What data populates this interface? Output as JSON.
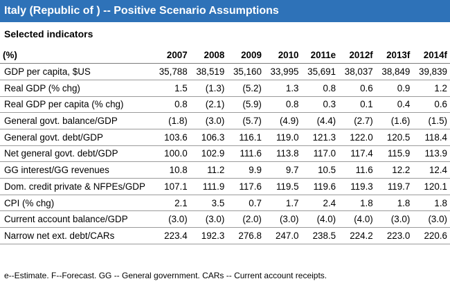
{
  "header": {
    "title": "Italy (Republic of ) -- Positive Scenario Assumptions",
    "subtitle": "Selected indicators"
  },
  "table": {
    "columns": [
      "(%)",
      "2007",
      "2008",
      "2009",
      "2010",
      "2011e",
      "2012f",
      "2013f",
      "2014f"
    ],
    "rows": [
      {
        "label": "GDP per capita, $US",
        "values": [
          "35,788",
          "38,519",
          "35,160",
          "33,995",
          "35,691",
          "38,037",
          "38,849",
          "39,839"
        ]
      },
      {
        "label": "Real GDP (% chg)",
        "values": [
          "1.5",
          "(1.3)",
          "(5.2)",
          "1.3",
          "0.8",
          "0.6",
          "0.9",
          "1.2"
        ]
      },
      {
        "label": "Real GDP per capita (% chg)",
        "values": [
          "0.8",
          "(2.1)",
          "(5.9)",
          "0.8",
          "0.3",
          "0.1",
          "0.4",
          "0.6"
        ]
      },
      {
        "label": "General govt. balance/GDP",
        "values": [
          "(1.8)",
          "(3.0)",
          "(5.7)",
          "(4.9)",
          "(4.4)",
          "(2.7)",
          "(1.6)",
          "(1.5)"
        ]
      },
      {
        "label": "General govt. debt/GDP",
        "values": [
          "103.6",
          "106.3",
          "116.1",
          "119.0",
          "121.3",
          "122.0",
          "120.5",
          "118.4"
        ]
      },
      {
        "label": "Net general govt. debt/GDP",
        "values": [
          "100.0",
          "102.9",
          "111.6",
          "113.8",
          "117.0",
          "117.4",
          "115.9",
          "113.9"
        ]
      },
      {
        "label": "GG interest/GG revenues",
        "values": [
          "10.8",
          "11.2",
          "9.9",
          "9.7",
          "10.5",
          "11.6",
          "12.2",
          "12.4"
        ]
      },
      {
        "label": "Dom. credit private & NFPEs/GDP",
        "values": [
          "107.1",
          "111.9",
          "117.6",
          "119.5",
          "119.6",
          "119.3",
          "119.7",
          "120.1"
        ]
      },
      {
        "label": "CPI (% chg)",
        "values": [
          "2.1",
          "3.5",
          "0.7",
          "1.7",
          "2.4",
          "1.8",
          "1.8",
          "1.8"
        ]
      },
      {
        "label": "Current account balance/GDP",
        "values": [
          "(3.0)",
          "(3.0)",
          "(2.0)",
          "(3.0)",
          "(4.0)",
          "(4.0)",
          "(3.0)",
          "(3.0)"
        ]
      },
      {
        "label": "Narrow net ext. debt/CARs",
        "values": [
          "223.4",
          "192.3",
          "276.8",
          "247.0",
          "238.5",
          "224.2",
          "223.0",
          "220.6"
        ]
      }
    ]
  },
  "footnote": "e--Estimate. F--Forecast. GG -- General government. CARs -- Current account receipts.",
  "colors": {
    "title_bar": "#2e72b8",
    "title_text": "#ffffff",
    "rule": "#9a9a9a"
  }
}
